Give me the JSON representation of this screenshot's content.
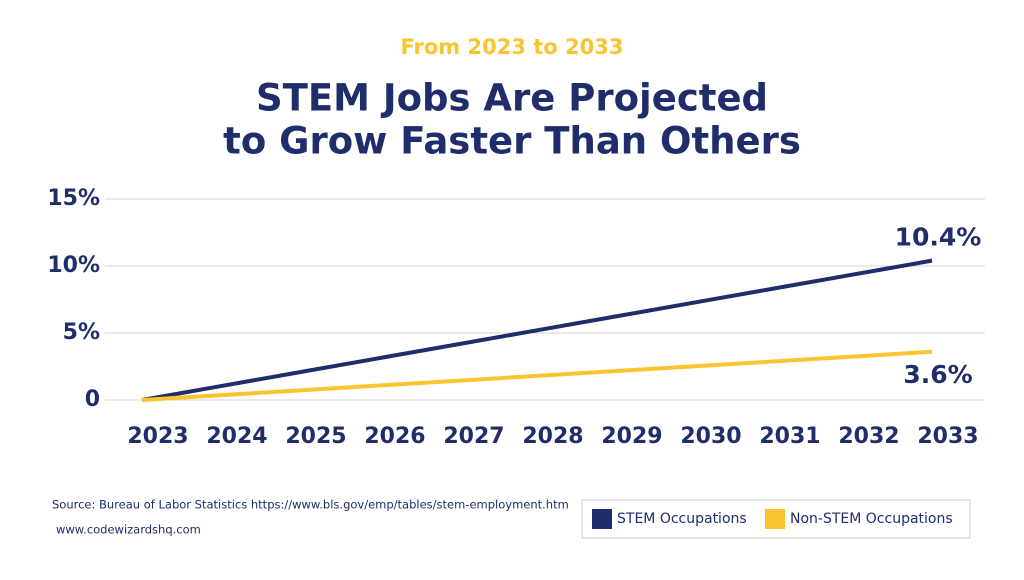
{
  "chart_data": {
    "type": "line",
    "subtitle": "From 2023 to 2033",
    "title": [
      "STEM Jobs Are Projected",
      "to Grow Faster Than Others"
    ],
    "x": [
      2023,
      2024,
      2025,
      2026,
      2027,
      2028,
      2029,
      2030,
      2031,
      2032,
      2033
    ],
    "xlim": [
      2023,
      2033
    ],
    "series": [
      {
        "name": "STEM Occupations",
        "color": "#1f2d6b",
        "values": [
          0,
          1.04,
          2.08,
          3.12,
          4.16,
          5.2,
          6.24,
          7.28,
          8.32,
          9.36,
          10.4
        ],
        "value_labels": [
          null,
          null,
          null,
          null,
          null,
          null,
          null,
          null,
          null,
          null,
          "10.4%"
        ]
      },
      {
        "name": "Non-STEM Occupations",
        "color": "#f9c430",
        "values": [
          0,
          0.36,
          0.72,
          1.08,
          1.44,
          1.8,
          2.16,
          2.52,
          2.88,
          3.24,
          3.6
        ],
        "value_labels": [
          null,
          null,
          null,
          null,
          null,
          null,
          null,
          null,
          null,
          null,
          "3.6%"
        ]
      }
    ],
    "ylim": [
      0,
      15
    ],
    "yticks": [
      0,
      {
        "value": 5,
        "label": "5%"
      },
      {
        "value": 10,
        "label": "10%"
      },
      {
        "value": 15,
        "label": "15%"
      }
    ],
    "grid": true,
    "legend": "bottom-right",
    "source": "Source: Bureau of Labor Statistics https://www.bls.gov/emp/tables/stem-employment.htm",
    "website": "www.codewizardshq.com"
  }
}
